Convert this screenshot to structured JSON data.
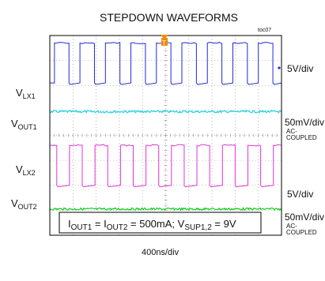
{
  "chart_data": {
    "type": "line",
    "title": "STEPDOWN WAVEFORMS",
    "tag": "toc07",
    "trigger_marker": "T",
    "xlabel": "400ns/div",
    "x_divisions": 10,
    "y_divisions": 8,
    "grid": true,
    "annotation": {
      "pre1": "I",
      "sub1": "OUT1",
      "eq1": " = I",
      "sub2": "OUT2",
      "mid": " = 500mA; V",
      "sub3": "SUP1,2",
      "post": " = 9V"
    },
    "series": [
      {
        "id": "vlx1",
        "name_main": "V",
        "name_sub": "LX1",
        "scale": "5V/div",
        "color": "#1f2bd6",
        "kind": "square",
        "period_div": 1.1,
        "duty": 0.57,
        "first_rise_div": 0.2,
        "high_div": 0.3,
        "low_div": 1.9
      },
      {
        "id": "vout1",
        "name_main": "V",
        "name_sub": "OUT1",
        "scale": "50mV/div",
        "coupling": [
          "AC-",
          "COUPLED"
        ],
        "color": "#19d1e0",
        "kind": "noise",
        "level_div": 3.05
      },
      {
        "id": "vlx2",
        "name_main": "V",
        "name_sub": "LX2",
        "scale": "5V/div",
        "color": "#e035d8",
        "kind": "square",
        "period_div": 1.1,
        "duty": 0.5,
        "first_rise_div": -0.25,
        "high_div": 4.4,
        "low_div": 6.0
      },
      {
        "id": "vout2",
        "name_main": "V",
        "name_sub": "OUT2",
        "scale": "50mV/div",
        "coupling": [
          "AC-",
          "COUPLED"
        ],
        "color": "#12cc1e",
        "kind": "noise",
        "level_div": 6.95
      }
    ]
  }
}
